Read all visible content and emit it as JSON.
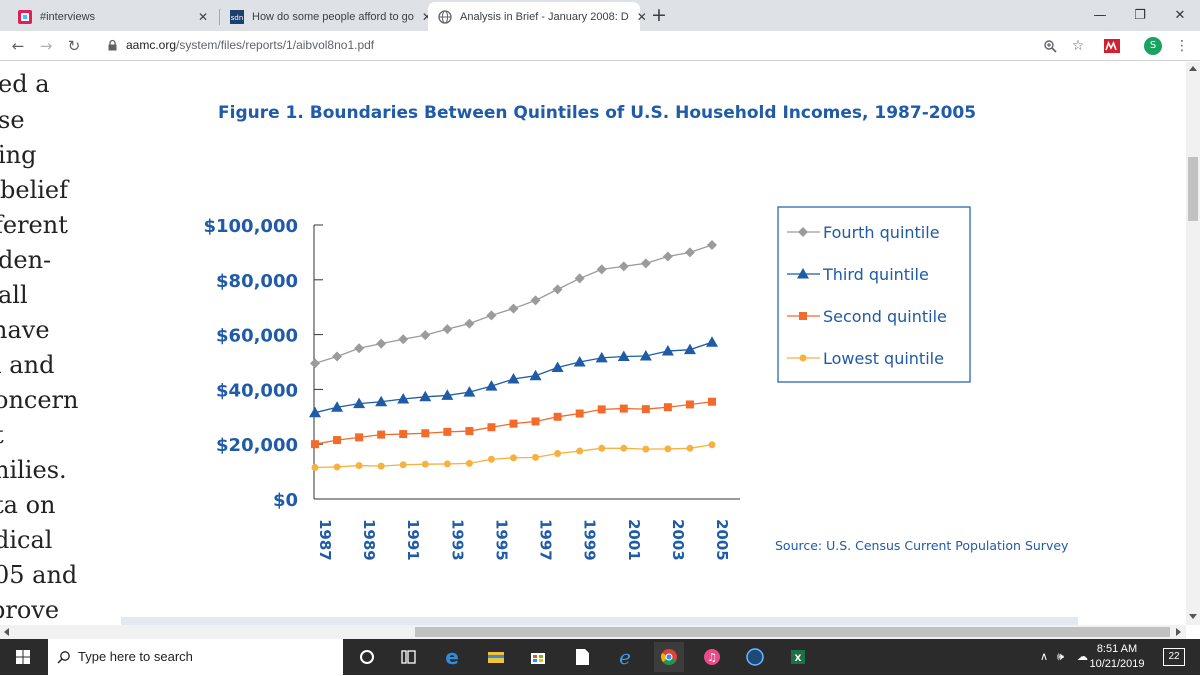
{
  "browser": {
    "tabs": [
      {
        "label": "#interviews"
      },
      {
        "label": "How do some people afford to go"
      },
      {
        "label": "Analysis in Brief - January 2008: D"
      }
    ],
    "url_host": "aamc.org",
    "url_path": "/system/files/reports/1/aibvol8no1.pdf",
    "profile_initial": "S"
  },
  "document": {
    "left_text_fragments": [
      "ed a",
      "se",
      "ing",
      " belief",
      "ferent",
      "den-",
      "all",
      "have",
      "l and",
      "oncern",
      "t",
      "nilies.",
      "ta on",
      "dical",
      "05 and",
      "prove"
    ],
    "figure_title": "Figure 1. Boundaries Between Quintiles of U.S. Household Incomes, 1987-2005",
    "source": "Source: U.S. Census Current Population Survey"
  },
  "chart_data": {
    "type": "line",
    "title": "Figure 1. Boundaries Between Quintiles of U.S. Household Incomes, 1987-2005",
    "xlabel": "",
    "ylabel": "",
    "x": [
      1987,
      1988,
      1989,
      1990,
      1991,
      1992,
      1993,
      1994,
      1995,
      1996,
      1997,
      1998,
      1999,
      2000,
      2001,
      2002,
      2003,
      2004,
      2005
    ],
    "x_tick_labels": [
      "1987",
      "1989",
      "1991",
      "1993",
      "1995",
      "1997",
      "1999",
      "2001",
      "2003",
      "2005"
    ],
    "y_tick_labels": [
      "$100,000",
      "$80,000",
      "$60,000",
      "$40,000",
      "$20,000",
      "$0"
    ],
    "ylim": [
      0,
      100000
    ],
    "legend_position": "top-right",
    "series": [
      {
        "name": "Fourth quintile",
        "color": "#9b9b9b",
        "marker": "diamond",
        "values": [
          49500,
          52000,
          55000,
          56700,
          58300,
          59800,
          62000,
          64000,
          67000,
          69500,
          72500,
          76500,
          80500,
          83800,
          84900,
          86000,
          88500,
          90000,
          92700
        ]
      },
      {
        "name": "Third quintile",
        "color": "#1f5ba6",
        "marker": "triangle",
        "values": [
          31500,
          33500,
          34800,
          35500,
          36500,
          37300,
          37800,
          39000,
          41200,
          43800,
          45000,
          48000,
          50000,
          51500,
          52000,
          52200,
          54000,
          54500,
          57200
        ]
      },
      {
        "name": "Second quintile",
        "color": "#f26b2a",
        "marker": "square",
        "values": [
          20000,
          21500,
          22500,
          23500,
          23700,
          24000,
          24500,
          24800,
          26200,
          27500,
          28300,
          30000,
          31200,
          32700,
          33000,
          32800,
          33500,
          34500,
          35500
        ]
      },
      {
        "name": "Lowest quintile",
        "color": "#f6b140",
        "marker": "circle",
        "values": [
          11500,
          11700,
          12200,
          12000,
          12500,
          12700,
          12800,
          13000,
          14500,
          15000,
          15200,
          16600,
          17500,
          18500,
          18500,
          18200,
          18300,
          18500,
          19800
        ]
      }
    ]
  },
  "taskbar": {
    "search_placeholder": "Type here to search",
    "time": "8:51 AM",
    "date": "10/21/2019",
    "notification_count": "22"
  }
}
